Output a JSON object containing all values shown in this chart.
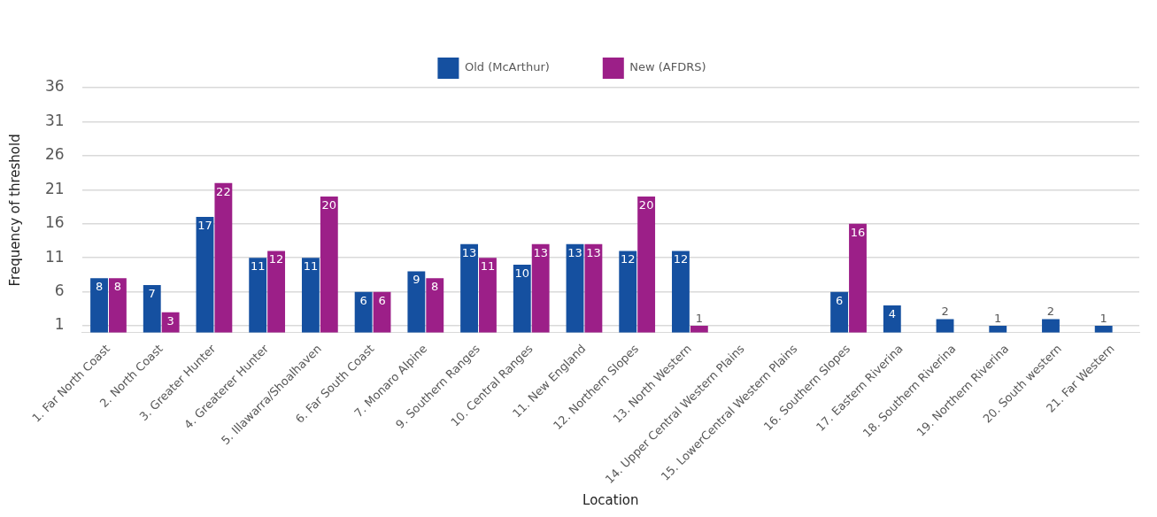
{
  "chart_data": {
    "type": "bar",
    "xlabel": "Location",
    "ylabel": "Frequency of threshold",
    "categories": [
      "1. Far North Coast",
      "2. North Coast",
      "3. Greater Hunter",
      "4. Greaterer Hunter",
      "5. Illawarra/Shoalhaven",
      "6. Far South Coast",
      "7. Monaro Alpine",
      "9. Southern Ranges",
      "10. Central Ranges",
      "11. New England",
      "12. Northern Slopes",
      "13. North Western",
      "14. Upper Central Western Plains",
      "15. LowerCentral Western Plains",
      "16. Southern Slopes",
      "17. Eastern Riverina",
      "18. Southern Riverina",
      "19. Northern Riverina",
      "20. South western",
      "21. Far Western"
    ],
    "series": [
      {
        "name": "Old (McArthur)",
        "color": "#1550a0",
        "values": [
          8,
          7,
          17,
          11,
          11,
          6,
          9,
          13,
          10,
          13,
          12,
          12,
          null,
          null,
          6,
          4,
          2,
          1,
          2,
          1
        ]
      },
      {
        "name": "New (AFDRS)",
        "color": "#9c1f88",
        "values": [
          8,
          3,
          22,
          12,
          20,
          6,
          8,
          11,
          13,
          13,
          20,
          1,
          null,
          null,
          16,
          null,
          null,
          null,
          null,
          null
        ]
      }
    ],
    "ylim": [
      0,
      36
    ],
    "yticks": [
      1,
      6,
      11,
      16,
      21,
      26,
      31,
      36
    ],
    "grid": "y",
    "legend": "top",
    "data_labels": true
  }
}
